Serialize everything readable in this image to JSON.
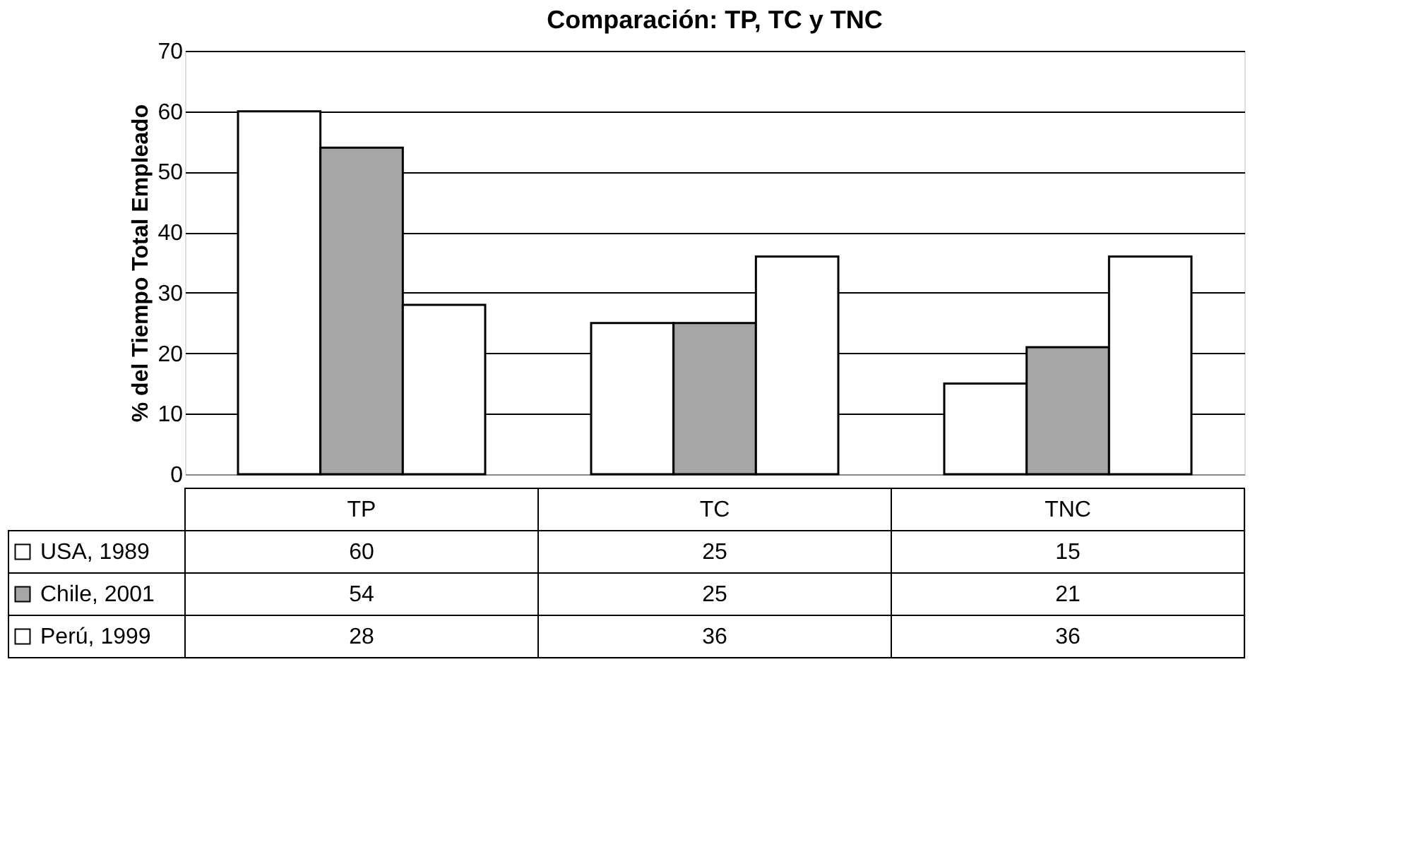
{
  "chart_data": {
    "type": "bar",
    "title": "Comparación: TP, TC y TNC",
    "ylabel": "% del Tiempo Total Empleado",
    "categories": [
      "TP",
      "TC",
      "TNC"
    ],
    "series": [
      {
        "name": "USA, 1989",
        "color": "#ffffff",
        "values": [
          60,
          25,
          15
        ]
      },
      {
        "name": "Chile, 2001",
        "color": "#a6a6a6",
        "values": [
          54,
          25,
          21
        ]
      },
      {
        "name": "Perú, 1999",
        "color": "#ffffff",
        "values": [
          28,
          36,
          36
        ]
      }
    ],
    "ylim": [
      0,
      70
    ],
    "yticks": [
      0,
      10,
      20,
      30,
      40,
      50,
      60,
      70
    ],
    "grid": "y",
    "legend": "bottom",
    "data_labels": true
  }
}
